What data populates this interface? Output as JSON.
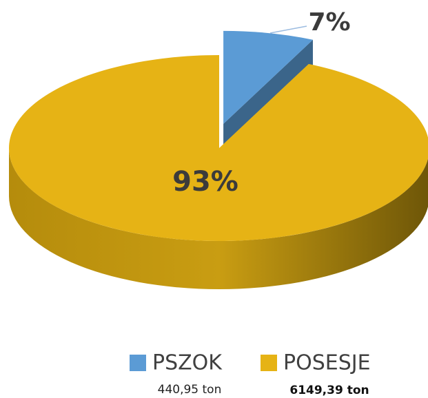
{
  "chart_data": {
    "type": "pie",
    "categories": [
      "PSZOK",
      "POSESJE"
    ],
    "values": [
      7,
      93
    ],
    "value_labels": [
      "7%",
      "93%"
    ],
    "colors": [
      "#5b9bd5",
      "#e6b315"
    ],
    "annotations": [
      "440,95 ton",
      "6149,39 ton"
    ],
    "legend": "bottom"
  }
}
